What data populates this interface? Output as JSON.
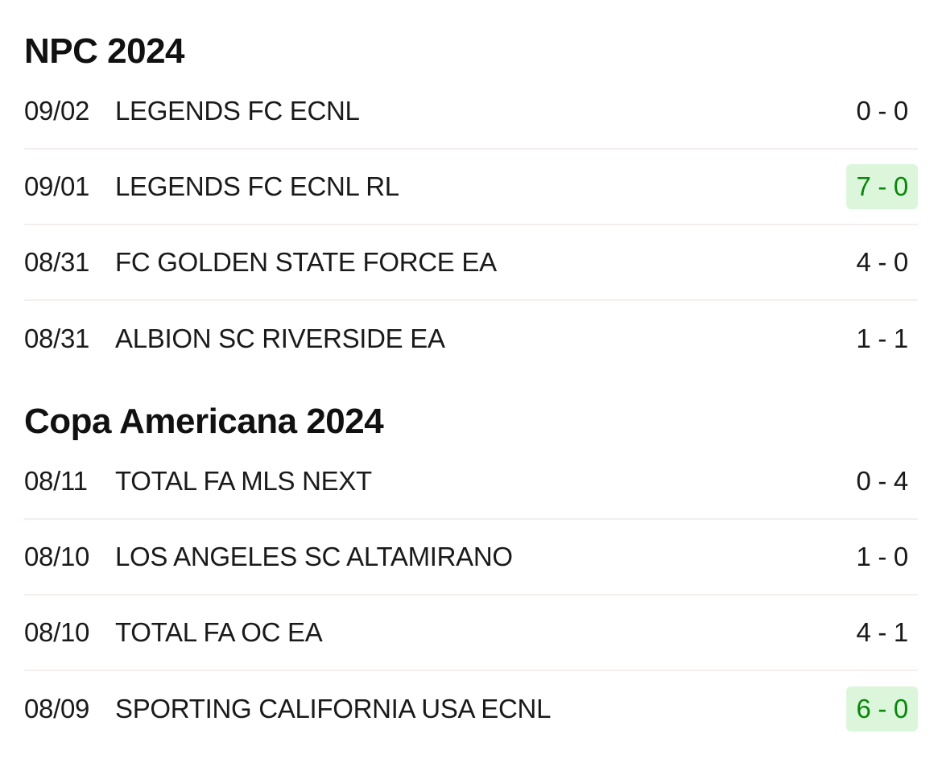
{
  "colors": {
    "text": "#1a1a1a",
    "win_text": "#0a870a",
    "win_bg": "#dcf6dc",
    "divider": "#f4efee"
  },
  "sections": [
    {
      "title": "NPC 2024",
      "matches": [
        {
          "date": "09/02",
          "opponent": "LEGENDS FC ECNL",
          "score": "0 - 0",
          "highlight": false
        },
        {
          "date": "09/01",
          "opponent": "LEGENDS FC ECNL RL",
          "score": "7 - 0",
          "highlight": true
        },
        {
          "date": "08/31",
          "opponent": "FC GOLDEN STATE FORCE EA",
          "score": "4 - 0",
          "highlight": false
        },
        {
          "date": "08/31",
          "opponent": "ALBION SC RIVERSIDE EA",
          "score": "1 - 1",
          "highlight": false
        }
      ]
    },
    {
      "title": "Copa Americana 2024",
      "matches": [
        {
          "date": "08/11",
          "opponent": "TOTAL FA MLS NEXT",
          "score": "0 - 4",
          "highlight": false
        },
        {
          "date": "08/10",
          "opponent": "LOS ANGELES SC ALTAMIRANO",
          "score": "1 - 0",
          "highlight": false
        },
        {
          "date": "08/10",
          "opponent": "TOTAL FA OC EA",
          "score": "4 - 1",
          "highlight": false
        },
        {
          "date": "08/09",
          "opponent": "SPORTING CALIFORNIA USA ECNL",
          "score": "6 - 0",
          "highlight": true
        }
      ]
    }
  ]
}
